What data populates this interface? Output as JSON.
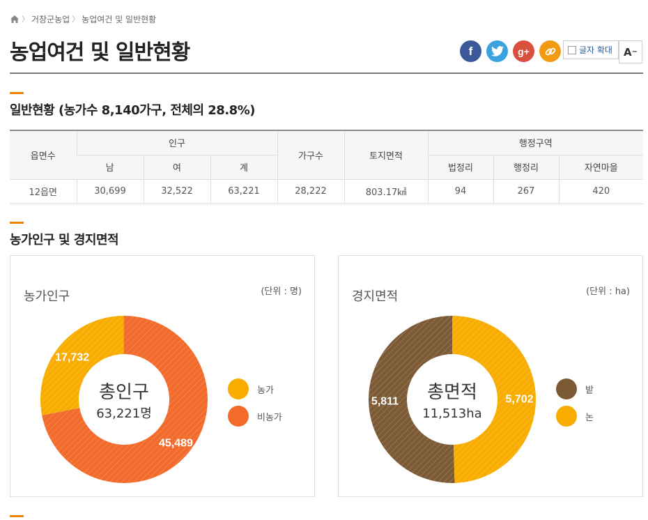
{
  "breadcrumb": {
    "items": [
      "거창군농업",
      "농업여건 및 일반현황"
    ]
  },
  "page": {
    "title": "농업여건 및 일반현황"
  },
  "share": {
    "facebook": "f",
    "twitter": "t",
    "googleplus": "g+",
    "link": "link",
    "zoom_in_alt": "글자 확대",
    "zoom_out_label": "A"
  },
  "section1": {
    "title": "일반현황 (농가수 8,140가구, 전체의 28.8%)",
    "table": {
      "headers": {
        "town": "읍면수",
        "population": "인구",
        "male": "남",
        "female": "여",
        "total": "계",
        "households": "가구수",
        "land_area": "토지면적",
        "admin": "행정구역",
        "legal_ri": "법정리",
        "admin_ri": "행정리",
        "villages": "자연마을"
      },
      "row": {
        "town": "12읍면",
        "male": "30,699",
        "female": "32,522",
        "total": "63,221",
        "households": "28,222",
        "land_area": "803.17㎢",
        "legal_ri": "94",
        "admin_ri": "267",
        "villages": "420"
      }
    }
  },
  "section2": {
    "title": "농가인구 및 경지면적"
  },
  "chart_data": [
    {
      "type": "pie",
      "title": "농가인구",
      "unit": "(단위 : 명)",
      "center_title": "총인구",
      "center_value": "63,221명",
      "categories": [
        "농가",
        "비농가"
      ],
      "values": [
        17732,
        45489
      ],
      "labels": [
        "17,732",
        "45,489"
      ],
      "colors": [
        "#f8ac00",
        "#f26b2a"
      ]
    },
    {
      "type": "pie",
      "title": "경지면적",
      "unit": "(단위 : ha)",
      "center_title": "총면적",
      "center_value": "11,513ha",
      "categories": [
        "밭",
        "논"
      ],
      "values": [
        5811,
        5702
      ],
      "labels": [
        "5,811",
        "5,702"
      ],
      "colors": [
        "#7d5a36",
        "#f8ac00"
      ]
    }
  ]
}
